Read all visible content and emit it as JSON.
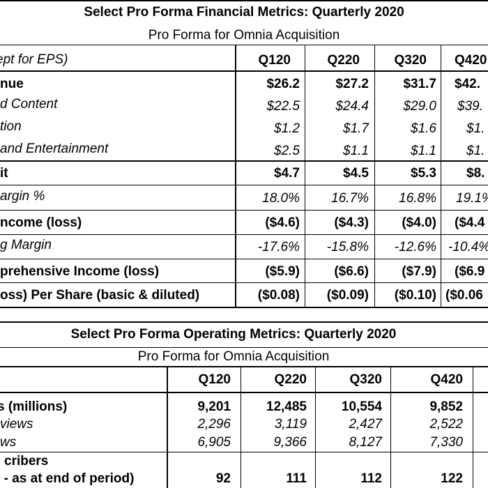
{
  "financial": {
    "title": "Select Pro Forma Financial Metrics: Quarterly 2020",
    "subtitle": "Pro Forma for Omnia Acquisition",
    "header_label": "ept for EPS)",
    "quarters": [
      "Q120",
      "Q220",
      "Q320",
      "Q420"
    ],
    "rows": [
      {
        "label": "nue",
        "values": [
          "$26.2",
          "$27.2",
          "$31.7",
          "$42."
        ]
      },
      {
        "label": "d Content",
        "values": [
          "$22.5",
          "$24.4",
          "$29.0",
          "$39."
        ]
      },
      {
        "label": "tion",
        "values": [
          "$1.2",
          "$1.7",
          "$1.6",
          "$1."
        ]
      },
      {
        "label": "and Entertainment",
        "values": [
          "$2.5",
          "$1.1",
          "$1.1",
          "$1."
        ]
      },
      {
        "label": "it",
        "values": [
          "$4.7",
          "$4.5",
          "$5.3",
          "$8."
        ]
      },
      {
        "label": "argin %",
        "values": [
          "18.0%",
          "16.7%",
          "16.8%",
          "19.1%"
        ]
      },
      {
        "label": "ncome (loss)",
        "values": [
          "($4.6)",
          "($4.3)",
          "($4.0)",
          "($4.4"
        ]
      },
      {
        "label": "g Margin",
        "values": [
          "-17.6%",
          "-15.8%",
          "-12.6%",
          "-10.4%"
        ]
      },
      {
        "label": "prehensive Income (loss)",
        "values": [
          "($5.9)",
          "($6.6)",
          "($7.9)",
          "($6.9"
        ]
      },
      {
        "label": "oss) Per Share (basic & diluted)",
        "values": [
          "($0.08)",
          "($0.09)",
          "($0.10)",
          "($0.06"
        ]
      }
    ]
  },
  "operating": {
    "title": "Select Pro Forma Operating Metrics: Quarterly 2020",
    "subtitle": "Pro Forma for Omnia Acquisition",
    "quarters": [
      "Q120",
      "Q220",
      "Q320",
      "Q420"
    ],
    "rows": [
      {
        "label": "s (millions)",
        "values": [
          "9,201",
          "12,485",
          "10,554",
          "9,852"
        ]
      },
      {
        "label": "views",
        "values": [
          "2,296",
          "3,119",
          "2,427",
          "2,522"
        ]
      },
      {
        "label": "ws",
        "values": [
          "6,905",
          "9,366",
          "8,127",
          "7,330"
        ]
      },
      {
        "label": "cribers",
        "values": []
      },
      {
        "label": ") - as at end of period)",
        "values": [
          "92",
          "111",
          "112",
          "122"
        ]
      }
    ]
  }
}
